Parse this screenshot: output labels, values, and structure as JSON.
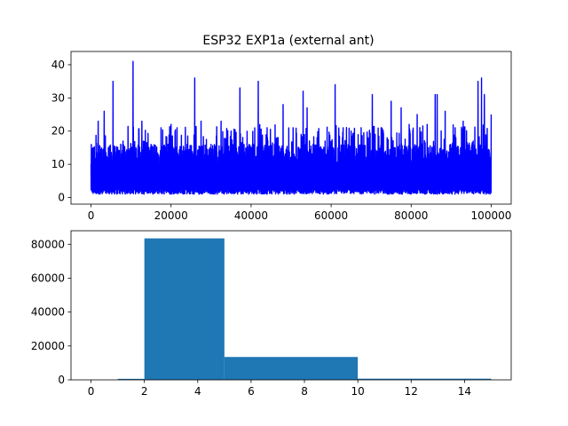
{
  "chart_data": [
    {
      "type": "line",
      "title": "ESP32 EXP1a  (external ant)",
      "xlabel": "",
      "ylabel": "",
      "xlim": [
        -5000,
        105000
      ],
      "ylim": [
        -2,
        44
      ],
      "xticks": [
        0,
        20000,
        40000,
        60000,
        80000,
        100000
      ],
      "xtick_labels": [
        "0",
        "20000",
        "40000",
        "60000",
        "80000",
        "100000"
      ],
      "yticks": [
        0,
        10,
        20,
        30,
        40
      ],
      "ytick_labels": [
        "0",
        "10",
        "20",
        "30",
        "40"
      ],
      "line_color": "#0000ff",
      "grid": false,
      "series": [
        {
          "x": [
            0,
            1800,
            2600,
            3300,
            5500,
            8000,
            10500,
            12700,
            15000,
            17500,
            20000,
            21500,
            24000,
            25900,
            27500,
            30000,
            32500,
            35000,
            37200,
            39500,
            41800,
            44000,
            46500,
            48000,
            50500,
            53000,
            54000,
            56500,
            58500,
            61000,
            63000,
            65000,
            67500,
            70300,
            72500,
            74000,
            75000,
            77500,
            79500,
            81500,
            84000,
            86000,
            86500,
            88500,
            91000,
            93000,
            95500,
            96700,
            97600,
            98300,
            100000
          ],
          "peak_values": [
            10,
            23,
            14,
            26,
            35,
            17,
            41,
            23,
            16,
            21,
            22,
            21,
            16,
            36,
            23,
            16,
            23,
            20,
            33,
            16,
            35,
            21,
            16,
            28,
            21,
            32,
            27,
            18,
            17,
            34,
            21,
            20,
            21,
            31,
            21,
            18,
            29,
            27,
            22,
            25,
            22,
            31,
            31,
            26,
            21,
            23,
            17,
            35,
            36,
            31,
            25
          ],
          "baseline_value": 1
        }
      ]
    },
    {
      "type": "bar",
      "title": "",
      "xlabel": "",
      "ylabel": "",
      "xlim": [
        -0.75,
        15.75
      ],
      "ylim": [
        0,
        88000
      ],
      "xticks": [
        0,
        2,
        4,
        6,
        8,
        10,
        12,
        14
      ],
      "xtick_labels": [
        "0",
        "2",
        "4",
        "6",
        "8",
        "10",
        "12",
        "14"
      ],
      "yticks": [
        0,
        20000,
        40000,
        60000,
        80000
      ],
      "ytick_labels": [
        "0",
        "20000",
        "40000",
        "60000",
        "80000"
      ],
      "bar_color": "#1f77b4",
      "grid": false,
      "bins": [
        {
          "x0": 0,
          "x1": 1,
          "value": 0
        },
        {
          "x0": 1,
          "x1": 2,
          "value": 600
        },
        {
          "x0": 2,
          "x1": 5,
          "value": 83500
        },
        {
          "x0": 5,
          "x1": 10,
          "value": 13500
        },
        {
          "x0": 10,
          "x1": 15,
          "value": 700
        }
      ]
    }
  ]
}
